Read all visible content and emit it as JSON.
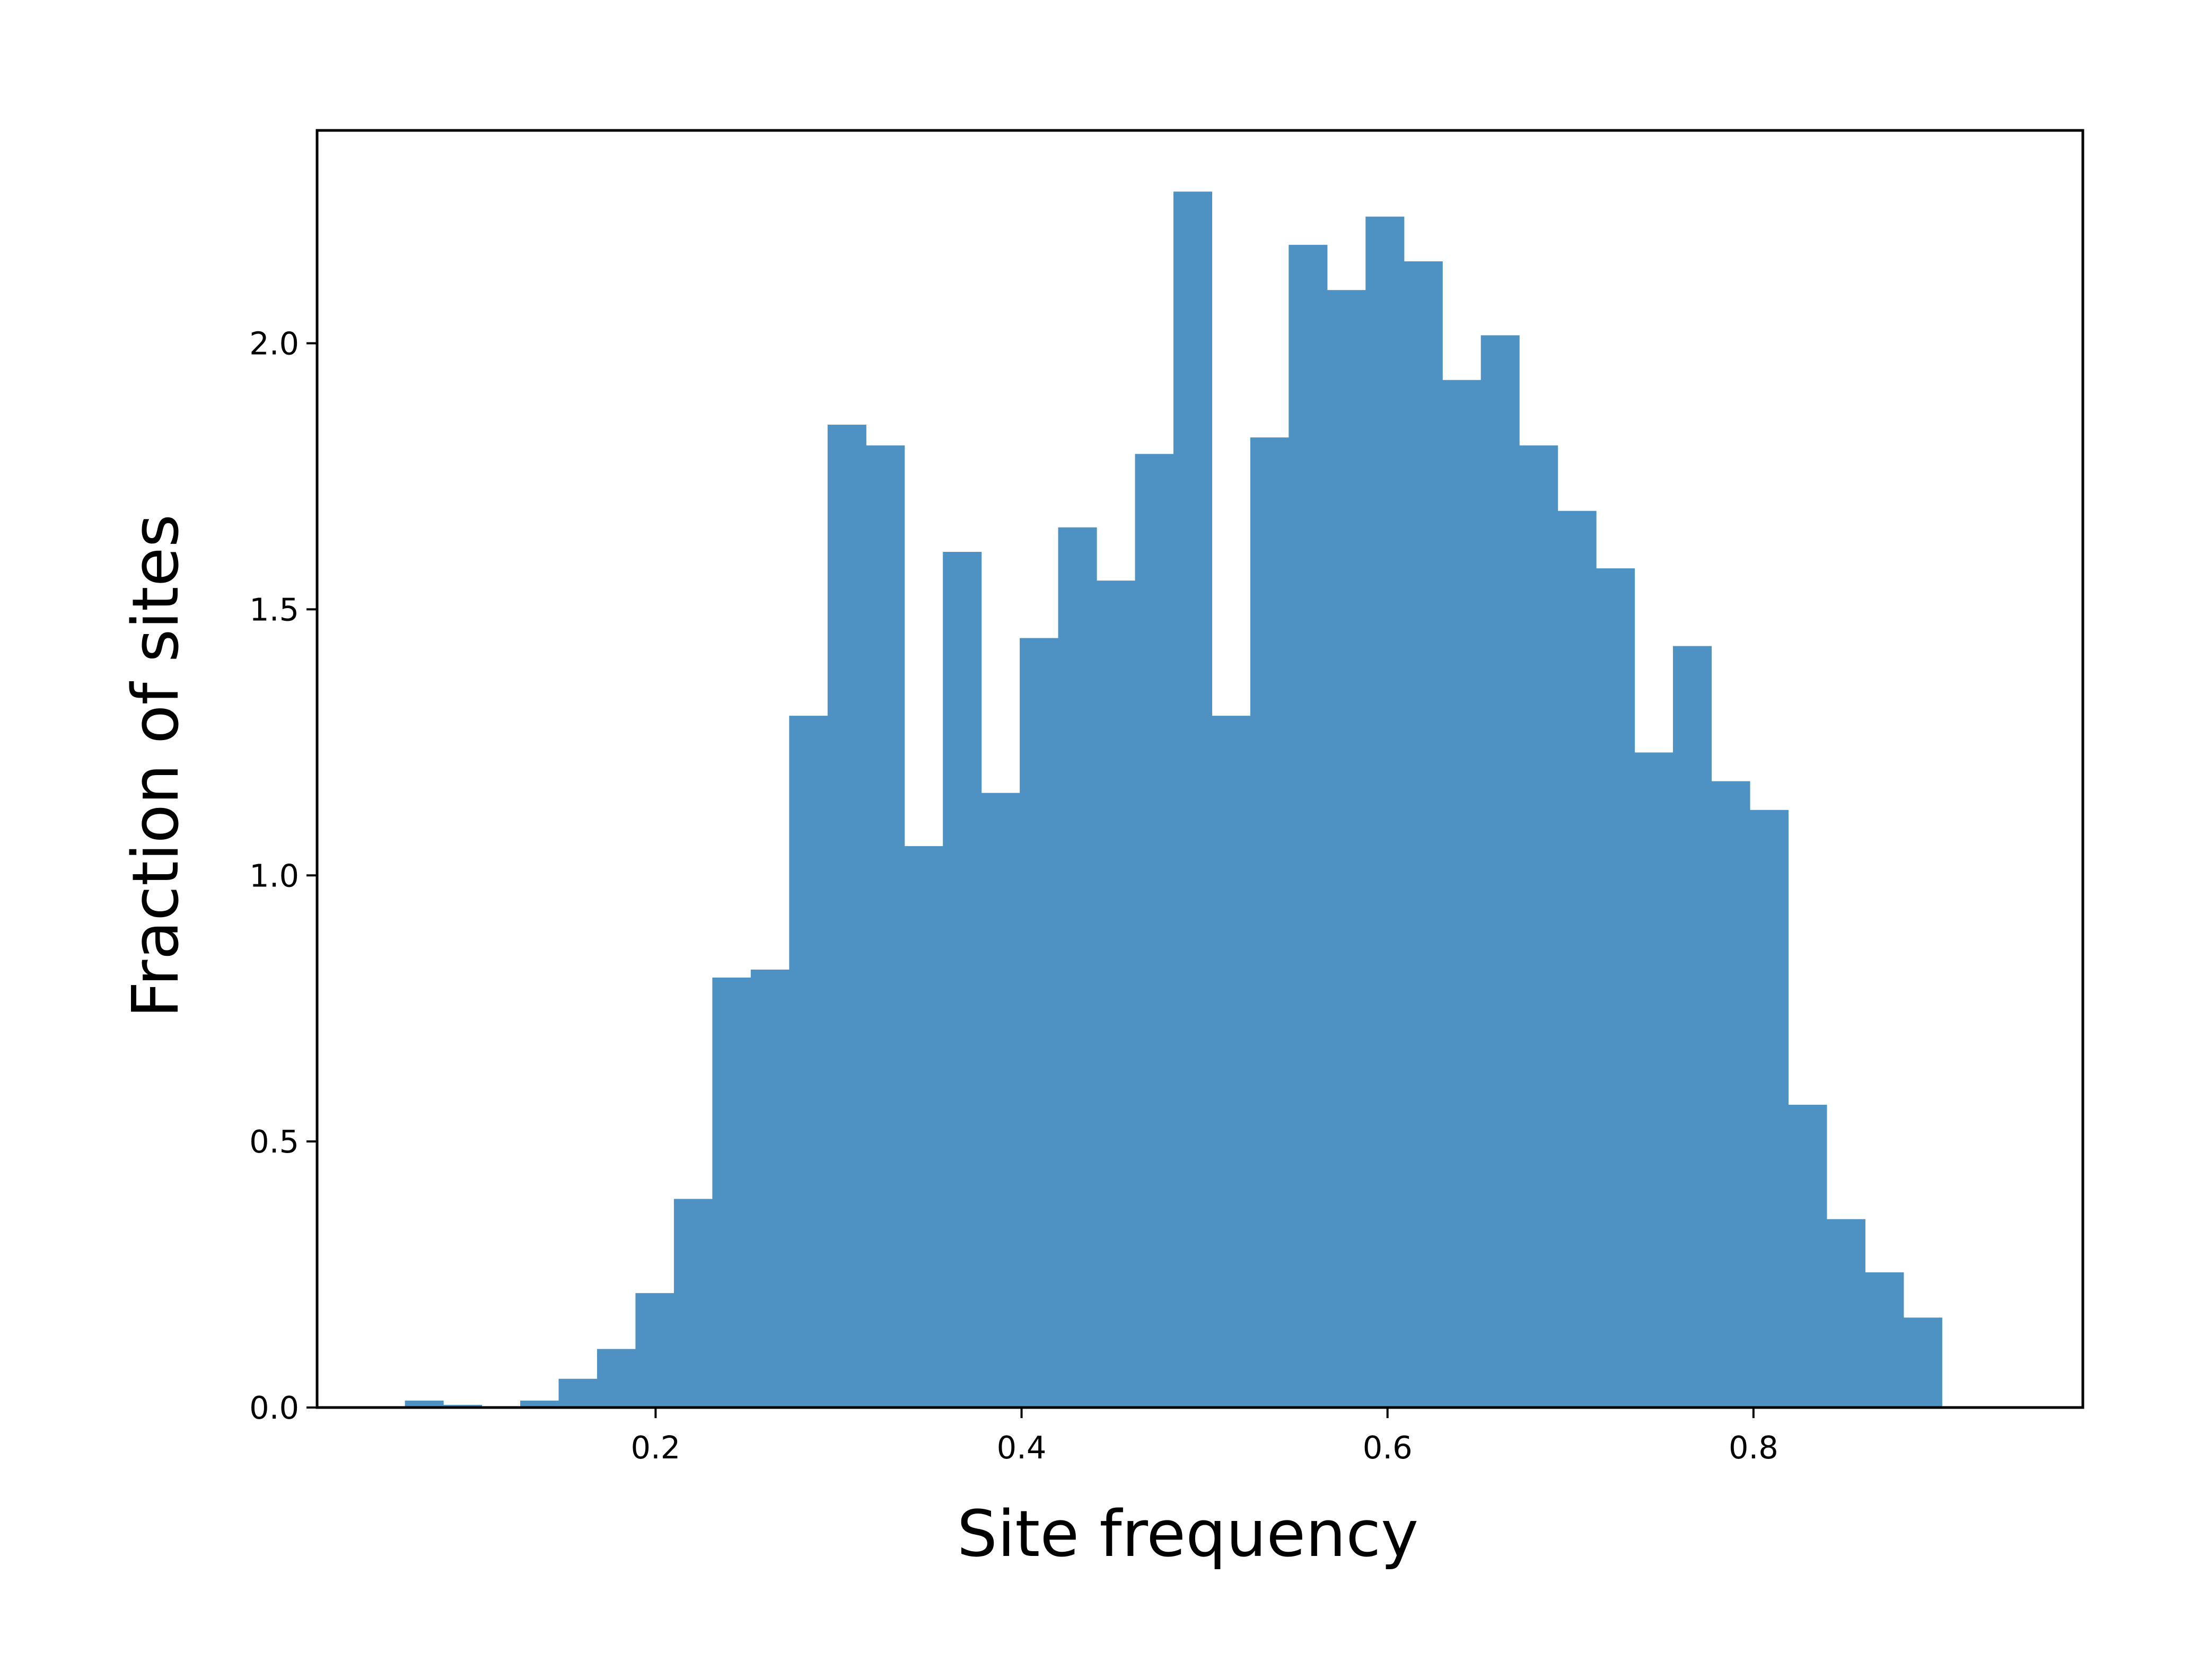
{
  "chart_data": {
    "type": "bar",
    "title": "",
    "xlabel": "Site frequency",
    "ylabel": "Fraction of sites",
    "xlim": [
      0.015,
      0.98
    ],
    "ylim": [
      0,
      2.4
    ],
    "x_ticks": [
      0.2,
      0.4,
      0.6,
      0.8
    ],
    "x_tick_labels": [
      "0.2",
      "0.4",
      "0.6",
      "0.8"
    ],
    "y_ticks": [
      0.0,
      0.5,
      1.0,
      1.5,
      2.0
    ],
    "y_tick_labels": [
      "0.0",
      "0.5",
      "1.0",
      "1.5",
      "2.0"
    ],
    "grid": false,
    "legend": "none",
    "bar_color": "#4d92c3",
    "bin_width": 0.021,
    "bins": [
      {
        "x0": 0.063,
        "value": 0.013
      },
      {
        "x0": 0.084,
        "value": 0.005
      },
      {
        "x0": 0.105,
        "value": 0.0
      },
      {
        "x0": 0.126,
        "value": 0.013
      },
      {
        "x0": 0.147,
        "value": 0.054
      },
      {
        "x0": 0.168,
        "value": 0.11
      },
      {
        "x0": 0.189,
        "value": 0.215
      },
      {
        "x0": 0.21,
        "value": 0.392
      },
      {
        "x0": 0.231,
        "value": 0.808
      },
      {
        "x0": 0.252,
        "value": 0.823
      },
      {
        "x0": 0.273,
        "value": 1.3
      },
      {
        "x0": 0.294,
        "value": 1.847
      },
      {
        "x0": 0.315,
        "value": 1.808
      },
      {
        "x0": 0.336,
        "value": 1.055
      },
      {
        "x0": 0.357,
        "value": 1.608
      },
      {
        "x0": 0.378,
        "value": 1.155
      },
      {
        "x0": 0.399,
        "value": 1.446
      },
      {
        "x0": 0.42,
        "value": 1.654
      },
      {
        "x0": 0.441,
        "value": 1.554
      },
      {
        "x0": 0.462,
        "value": 1.792
      },
      {
        "x0": 0.483,
        "value": 2.285
      },
      {
        "x0": 0.504,
        "value": 1.3
      },
      {
        "x0": 0.525,
        "value": 1.823
      },
      {
        "x0": 0.546,
        "value": 2.185
      },
      {
        "x0": 0.567,
        "value": 2.1
      },
      {
        "x0": 0.588,
        "value": 2.238
      },
      {
        "x0": 0.609,
        "value": 2.154
      },
      {
        "x0": 0.63,
        "value": 1.931
      },
      {
        "x0": 0.651,
        "value": 2.015
      },
      {
        "x0": 0.672,
        "value": 1.808
      },
      {
        "x0": 0.693,
        "value": 1.685
      },
      {
        "x0": 0.714,
        "value": 1.577
      },
      {
        "x0": 0.735,
        "value": 1.231
      },
      {
        "x0": 0.756,
        "value": 1.431
      },
      {
        "x0": 0.777,
        "value": 1.177
      },
      {
        "x0": 0.798,
        "value": 1.123
      },
      {
        "x0": 0.819,
        "value": 0.569
      },
      {
        "x0": 0.84,
        "value": 0.354
      },
      {
        "x0": 0.861,
        "value": 0.254
      },
      {
        "x0": 0.882,
        "value": 0.169
      }
    ]
  }
}
